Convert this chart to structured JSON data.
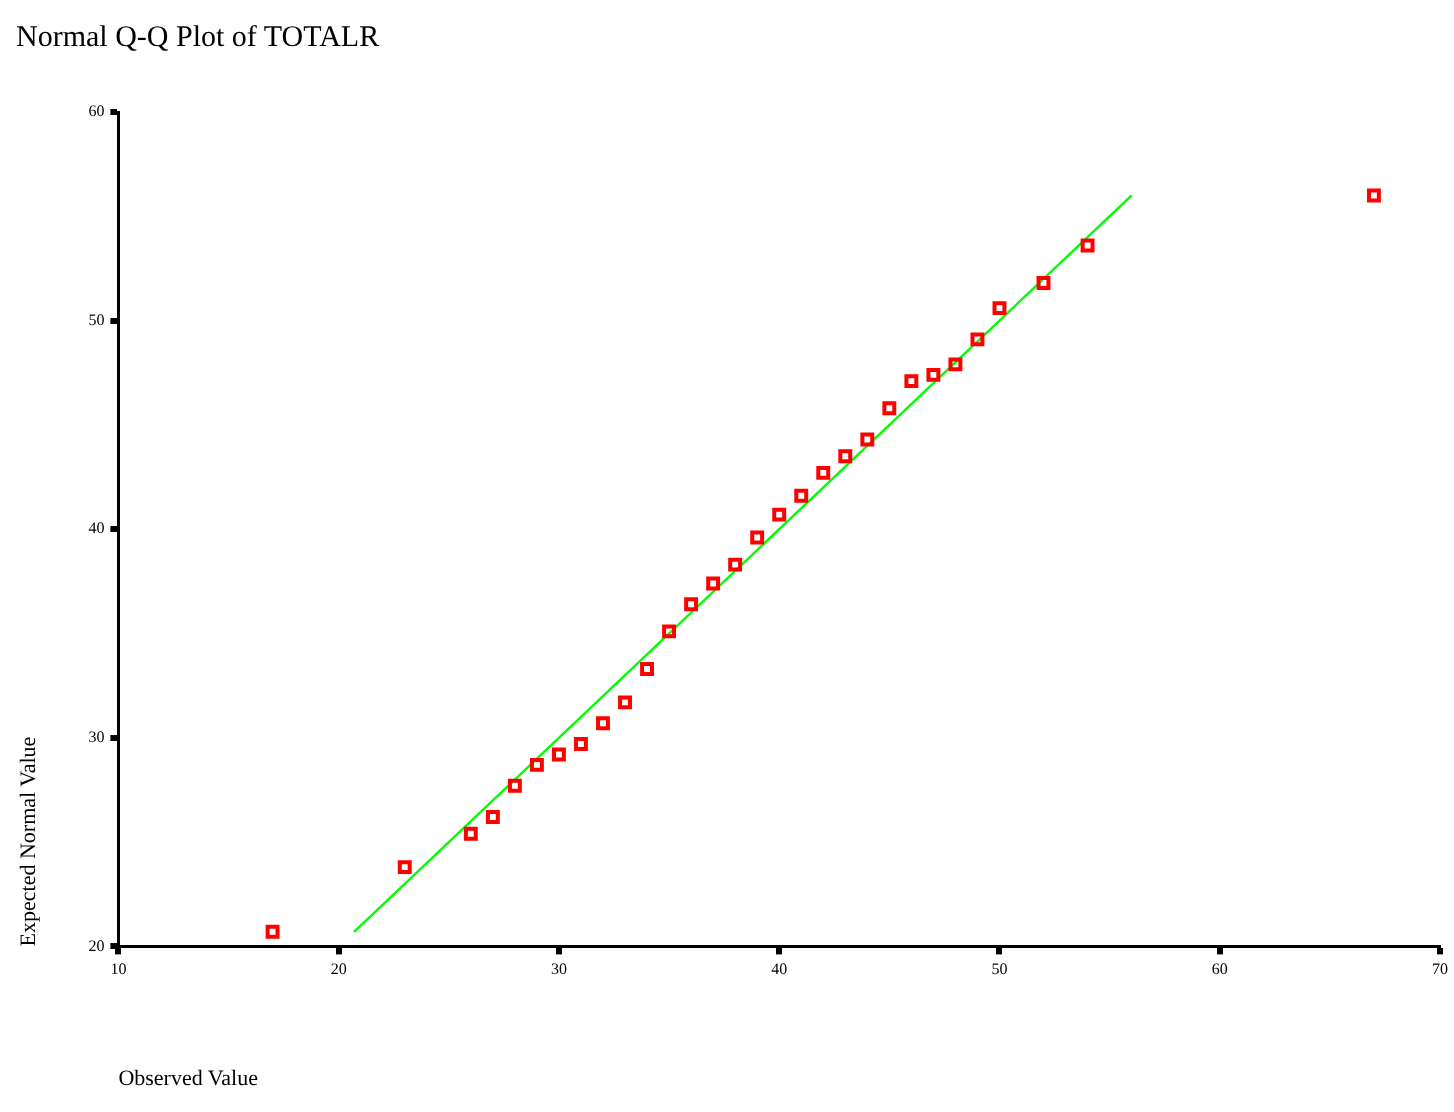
{
  "chart_data": {
    "type": "scatter",
    "title": "Normal Q-Q Plot of TOTALR",
    "xlabel": "Observed Value",
    "ylabel": "Expected Normal Value",
    "xlim": [
      10,
      70
    ],
    "xticks": [
      10,
      20,
      30,
      40,
      50,
      60,
      70
    ],
    "ylim": [
      20,
      60
    ],
    "yticks": [
      20,
      30,
      40,
      50,
      60
    ],
    "grid": false,
    "legend": false,
    "marker": "square",
    "series": [
      {
        "color": "#ff0000",
        "x": [
          17,
          23,
          26,
          27,
          28,
          29,
          30,
          31,
          32,
          33,
          34,
          35,
          36,
          37,
          38,
          39,
          40,
          41,
          42,
          43,
          44,
          45,
          46,
          47,
          48,
          49,
          50,
          52,
          54,
          67
        ],
        "values": [
          20.7,
          23.8,
          25.4,
          26.2,
          27.7,
          28.7,
          29.2,
          29.7,
          30.7,
          31.7,
          33.3,
          35.1,
          36.4,
          37.4,
          38.3,
          39.6,
          40.7,
          41.6,
          42.7,
          43.5,
          44.3,
          45.8,
          47.1,
          47.4,
          47.9,
          49.1,
          50.6,
          51.8,
          53.6,
          56.0
        ]
      },
      {
        "type": "line",
        "color": "#00ff00",
        "marker": "none",
        "line_style": "solid",
        "x": [
          20.7,
          56
        ],
        "values": [
          20.7,
          56
        ]
      }
    ]
  }
}
